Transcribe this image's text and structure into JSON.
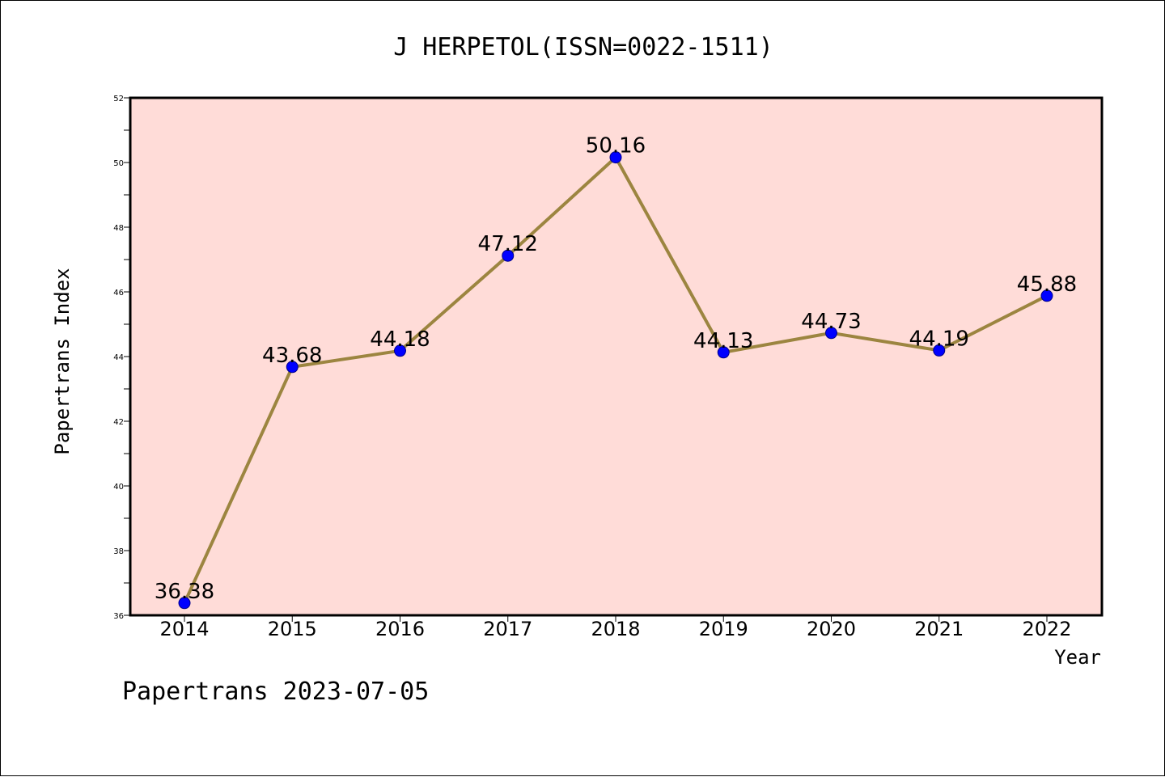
{
  "footer": "Papertrans 2023-07-05",
  "chart_data": {
    "type": "line",
    "title": "J HERPETOL(ISSN=0022-1511)",
    "xlabel": "Year",
    "ylabel": "Papertrans Index",
    "x": [
      "2014",
      "2015",
      "2016",
      "2017",
      "2018",
      "2019",
      "2020",
      "2021",
      "2022"
    ],
    "series": [
      {
        "values": [
          36.38,
          43.68,
          44.18,
          47.12,
          50.16,
          44.13,
          44.73,
          44.19,
          45.88
        ],
        "labels": [
          "36.38",
          "43.68",
          "44.18",
          "47.12",
          "50.16",
          "44.13",
          "44.73",
          "44.19",
          "45.88"
        ],
        "color": "#9c8540",
        "marker_color": "#0000ff"
      }
    ],
    "ylim": [
      36,
      52
    ],
    "yticks": [
      "36",
      "38",
      "40",
      "42",
      "44",
      "46",
      "48",
      "50",
      "52"
    ],
    "grid": false,
    "legend": "none",
    "background": "#ffdcd8"
  }
}
